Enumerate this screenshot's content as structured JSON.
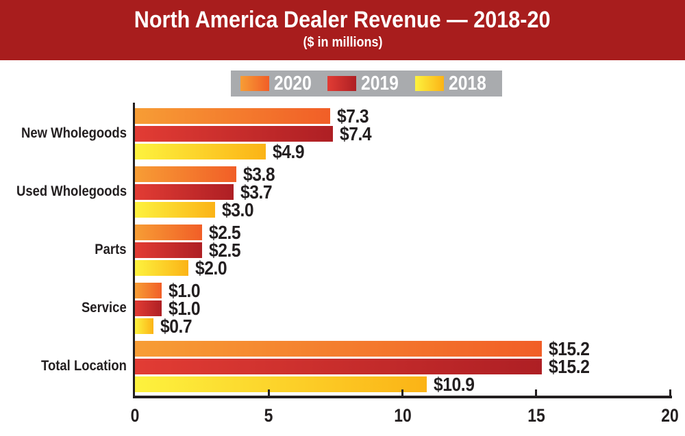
{
  "chart_data": {
    "type": "bar",
    "orientation": "horizontal-grouped",
    "title": "North America Dealer Revenue — 2018-20",
    "subtitle": "($ in millions)",
    "categories": [
      "New Wholegoods",
      "Used Wholegoods",
      "Parts",
      "Service",
      "Total Location"
    ],
    "series": [
      {
        "name": "2020",
        "values": [
          7.3,
          3.8,
          2.5,
          1.0,
          15.2
        ],
        "labels": [
          "$7.3",
          "$3.8",
          "$2.5",
          "$1.0",
          "$15.2"
        ],
        "gradient": [
          "#F79D35",
          "#F15E27"
        ]
      },
      {
        "name": "2019",
        "values": [
          7.4,
          3.7,
          2.5,
          1.0,
          15.2
        ],
        "labels": [
          "$7.4",
          "$3.7",
          "$2.5",
          "$1.0",
          "$15.2"
        ],
        "gradient": [
          "#E23C34",
          "#AE1F24"
        ]
      },
      {
        "name": "2018",
        "values": [
          4.9,
          3.0,
          2.0,
          0.7,
          10.9
        ],
        "labels": [
          "$4.9",
          "$3.0",
          "$2.0",
          "$0.7",
          "$10.9"
        ],
        "gradient": [
          "#FDF23E",
          "#FBB316"
        ]
      }
    ],
    "x_ticks": [
      "0",
      "5",
      "10",
      "15",
      "20"
    ],
    "xlim": [
      0,
      20
    ],
    "grid": false,
    "legend_position": "top-center"
  },
  "colors": {
    "banner_bg": "#A81D1D",
    "banner_text": "#FFFFFF",
    "legend_bg": "#A9ABAE",
    "legend_text": "#FFFFFF",
    "axis": "#231F20",
    "label_text": "#231F20",
    "background": "#FFFFFF"
  }
}
